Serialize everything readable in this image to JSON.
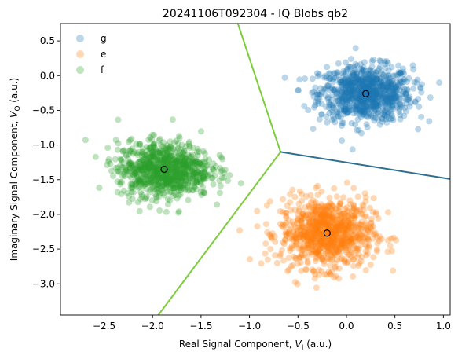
{
  "chart_data": {
    "type": "scatter",
    "title": "20241106T092304 - IQ Blobs qb2",
    "xlabel": {
      "main": "Real Signal Component, ",
      "var": "V",
      "sub": "I",
      "unit": " (a.u.)"
    },
    "ylabel": {
      "main": "Imaginary Signal Component, ",
      "var": "V",
      "sub": "Q",
      "unit": " (a.u.)"
    },
    "xlim": [
      -2.95,
      1.07
    ],
    "ylim": [
      -3.45,
      0.75
    ],
    "xticks": [
      -2.5,
      -2.0,
      -1.5,
      -1.0,
      -0.5,
      0.0,
      0.5,
      1.0
    ],
    "xtick_labels": [
      "−2.5",
      "−2.0",
      "−1.5",
      "−1.0",
      "−0.5",
      "0.0",
      "0.5",
      "1.0"
    ],
    "yticks": [
      0.5,
      0.0,
      -0.5,
      -1.0,
      -1.5,
      -2.0,
      -2.5,
      -3.0
    ],
    "ytick_labels": [
      "0.5",
      "0.0",
      "−0.5",
      "−1.0",
      "−1.5",
      "−2.0",
      "−2.5",
      "−3.0"
    ],
    "grid": false,
    "legend_position": "top-left",
    "series": [
      {
        "name": "g",
        "color": "#1f77b4",
        "center": [
          0.2,
          -0.26
        ],
        "spread": [
          0.24,
          0.2
        ],
        "count": 900
      },
      {
        "name": "e",
        "color": "#ff7f0e",
        "center": [
          -0.2,
          -2.27
        ],
        "spread": [
          0.24,
          0.25
        ],
        "count": 900
      },
      {
        "name": "f",
        "color": "#2ca02c",
        "center": [
          -1.88,
          -1.35
        ],
        "spread": [
          0.24,
          0.2
        ],
        "count": 900
      }
    ],
    "centroids": [
      [
        0.2,
        -0.26
      ],
      [
        -0.2,
        -2.27
      ],
      [
        -1.88,
        -1.35
      ]
    ],
    "decision_boundaries": {
      "junction": [
        -0.68,
        -1.1
      ],
      "lines": [
        {
          "name": "g-f",
          "color": "#7ccd3c",
          "to": [
            -1.12,
            0.75
          ]
        },
        {
          "name": "e-f",
          "color": "#7ccd3c",
          "to": [
            -1.94,
            -3.45
          ]
        },
        {
          "name": "g-e",
          "color": "#2d6f8e",
          "to": [
            1.07,
            -1.49
          ]
        }
      ]
    }
  }
}
